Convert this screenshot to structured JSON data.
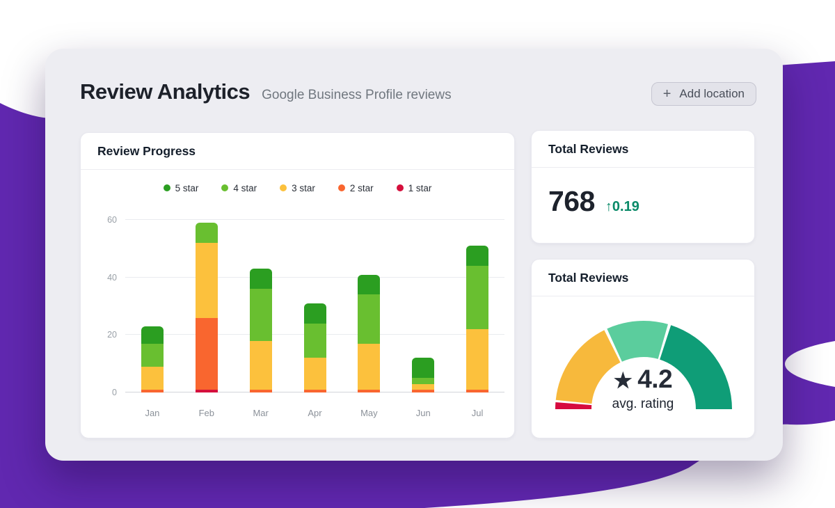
{
  "colors": {
    "purple": "#6128b0",
    "card": "#ededf2",
    "delta_green": "#0a8a68"
  },
  "header": {
    "title": "Review Analytics",
    "subtitle": "Google Business Profile reviews",
    "add_location": {
      "icon": "+",
      "label": "Add location"
    }
  },
  "panels": {
    "review_progress": {
      "title": "Review Progress"
    },
    "total_reviews": {
      "title": "Total Reviews",
      "value": "768",
      "delta_arrow": "↑",
      "delta": "0.19"
    },
    "rating_gauge": {
      "title": "Total Reviews",
      "star_icon": "★",
      "value": "4.2",
      "label": "avg. rating"
    }
  },
  "chart_data": [
    {
      "type": "bar",
      "stacked": true,
      "title": "Review Progress",
      "categories": [
        "Jan",
        "Feb",
        "Mar",
        "Apr",
        "May",
        "Jun",
        "Jul"
      ],
      "series": [
        {
          "name": "5 star",
          "color": "#2b9e21",
          "values": [
            6,
            0,
            7,
            7,
            7,
            7,
            7
          ]
        },
        {
          "name": "4 star",
          "color": "#69bf30",
          "values": [
            8,
            7,
            18,
            12,
            17,
            2,
            22
          ]
        },
        {
          "name": "3 star",
          "color": "#fcc13d",
          "values": [
            8,
            26,
            17,
            11,
            16,
            2,
            21
          ]
        },
        {
          "name": "2 star",
          "color": "#f9662f",
          "values": [
            1,
            25,
            1,
            1,
            1,
            1,
            1
          ]
        },
        {
          "name": "1 star",
          "color": "#d50f3c",
          "values": [
            0,
            1,
            0,
            0,
            0,
            0,
            0
          ]
        }
      ],
      "xlabel": "",
      "ylabel": "",
      "ylim": [
        0,
        60
      ],
      "yticks": [
        0,
        20,
        40,
        60
      ],
      "grid": true,
      "legend_position": "top"
    },
    {
      "type": "gauge",
      "title": "avg. rating",
      "value": 4.2,
      "angle_range": [
        0,
        180
      ],
      "segments": [
        {
          "name": "1-star-zone",
          "color": "#d60b3f",
          "start": 0,
          "end": 4.5
        },
        {
          "name": "3-star-zone",
          "color": "#f7b93c",
          "start": 6,
          "end": 63.5
        },
        {
          "name": "4-star-zone",
          "color": "#5bcd9d",
          "start": 65.5,
          "end": 106
        },
        {
          "name": "5-star-zone",
          "color": "#0f9d77",
          "start": 108,
          "end": 180
        }
      ]
    }
  ]
}
